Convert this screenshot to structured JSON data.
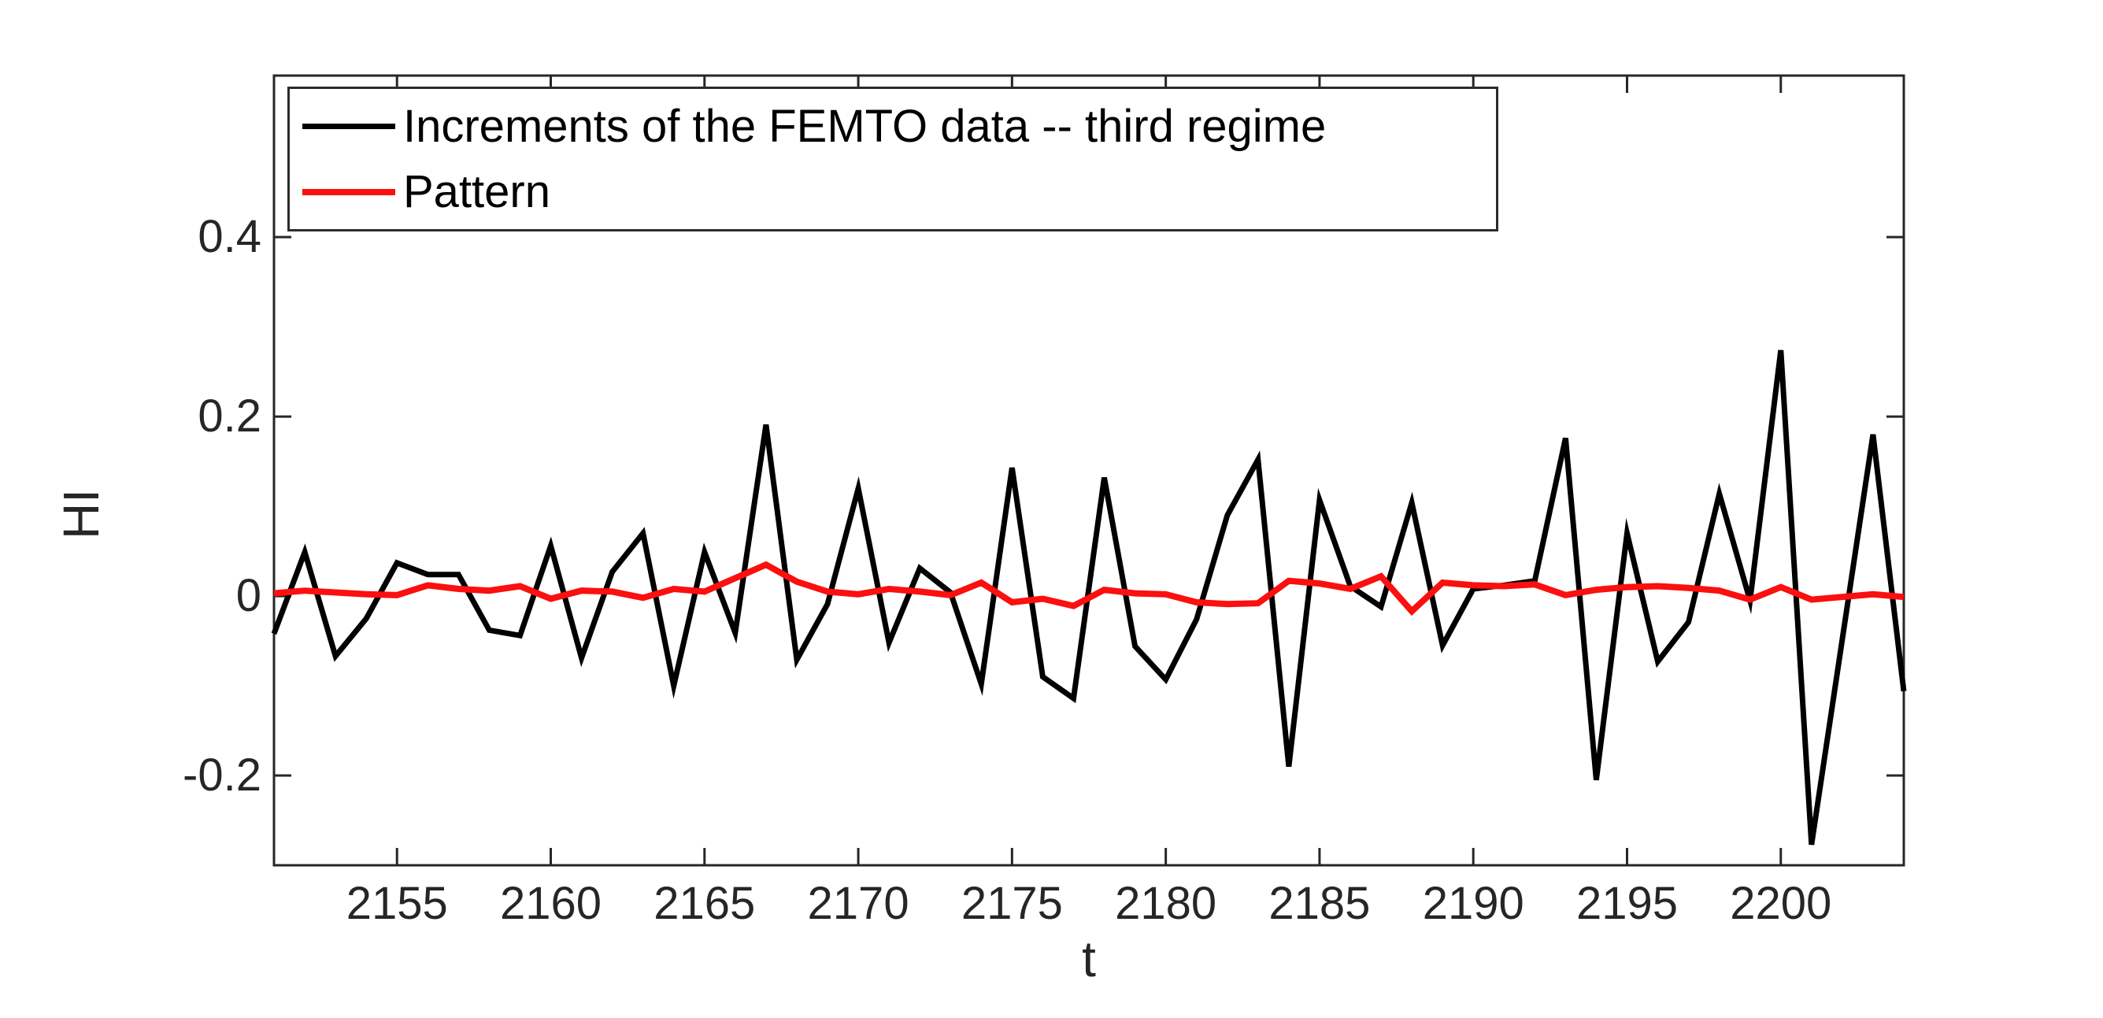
{
  "chart_data": {
    "type": "line",
    "title": "",
    "xlabel": "t",
    "ylabel": "HI",
    "xlim": [
      2151,
      2204
    ],
    "ylim": [
      -0.3,
      0.58
    ],
    "xticks": [
      2155,
      2160,
      2165,
      2170,
      2175,
      2180,
      2185,
      2190,
      2195,
      2200
    ],
    "yticks": [
      -0.2,
      0,
      0.2,
      0.4
    ],
    "ytick_labels": [
      "-0.2",
      "0",
      "0.2",
      "0.4"
    ],
    "grid": false,
    "legend_position": "northwest-inside",
    "axis_color": "#262626",
    "background_color": "#ffffff",
    "t": [
      2151,
      2152,
      2153,
      2154,
      2155,
      2156,
      2157,
      2158,
      2159,
      2160,
      2161,
      2162,
      2163,
      2164,
      2165,
      2166,
      2167,
      2168,
      2169,
      2170,
      2171,
      2172,
      2173,
      2174,
      2175,
      2176,
      2177,
      2178,
      2179,
      2180,
      2181,
      2182,
      2183,
      2184,
      2185,
      2186,
      2187,
      2188,
      2189,
      2190,
      2191,
      2192,
      2193,
      2194,
      2195,
      2196,
      2197,
      2198,
      2199,
      2200,
      2201,
      2202,
      2203,
      2204
    ],
    "series": [
      {
        "name": "Increments of the FEMTO data -- third regime",
        "color": "#000000",
        "line_width": 7,
        "values": [
          -0.042,
          0.049,
          -0.067,
          -0.025,
          0.037,
          0.024,
          0.024,
          -0.038,
          -0.044,
          0.056,
          -0.069,
          0.027,
          0.07,
          -0.1,
          0.049,
          -0.041,
          0.191,
          -0.071,
          -0.009,
          0.12,
          -0.052,
          0.031,
          0.004,
          -0.098,
          0.143,
          -0.09,
          -0.114,
          0.132,
          -0.056,
          -0.093,
          -0.026,
          0.09,
          0.152,
          -0.19,
          0.107,
          0.011,
          -0.012,
          0.104,
          -0.055,
          0.008,
          0.012,
          0.017,
          0.176,
          -0.205,
          0.07,
          -0.073,
          -0.029,
          0.114,
          -0.005,
          0.274,
          -0.277,
          -0.048,
          0.18,
          -0.106
        ]
      },
      {
        "name": "Pattern",
        "color": "#fb0f0f",
        "line_width": 8,
        "values": [
          0.003,
          0.006,
          0.004,
          0.002,
          0.001,
          0.012,
          0.008,
          0.006,
          0.011,
          -0.003,
          0.006,
          0.005,
          -0.002,
          0.008,
          0.005,
          0.02,
          0.035,
          0.016,
          0.005,
          0.002,
          0.008,
          0.005,
          0.001,
          0.015,
          -0.007,
          -0.003,
          -0.011,
          0.007,
          0.003,
          0.002,
          -0.007,
          -0.009,
          -0.008,
          0.017,
          0.014,
          0.008,
          0.022,
          -0.017,
          0.015,
          0.012,
          0.011,
          0.013,
          0.001,
          0.007,
          0.01,
          0.011,
          0.009,
          0.006,
          -0.004,
          0.01,
          -0.004,
          -0.001,
          0.002,
          -0.001
        ]
      }
    ]
  }
}
